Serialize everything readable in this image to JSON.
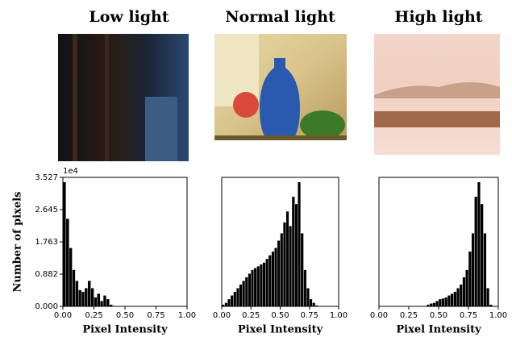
{
  "chart_data": [
    {
      "type": "histogram",
      "title": "Low light",
      "x_label": "Pixel Intensity",
      "y_label": "Number of pixels",
      "y_offset_text": "1e4",
      "color": "#000000",
      "bins": [
        0,
        0.025,
        0.05,
        0.075,
        0.1,
        0.125,
        0.15,
        0.175,
        0.2,
        0.225,
        0.25,
        0.275,
        0.3,
        0.325,
        0.35,
        0.375,
        0.4,
        0.425,
        0.45,
        0.475,
        0.5,
        0.525,
        0.55,
        0.575,
        0.6,
        0.625,
        0.65,
        0.675,
        0.7,
        0.725,
        0.75,
        0.775,
        0.8,
        0.825,
        0.85,
        0.875,
        0.9,
        0.925,
        0.95,
        0.975,
        1
      ],
      "values": [
        3.4,
        2.4,
        1.6,
        1.0,
        0.7,
        0.45,
        0.4,
        0.5,
        0.7,
        0.5,
        0.25,
        0.35,
        0.15,
        0.3,
        0.2,
        0.05,
        0,
        0,
        0,
        0,
        0,
        0,
        0,
        0,
        0,
        0,
        0,
        0,
        0,
        0,
        0,
        0,
        0,
        0,
        0,
        0,
        0,
        0,
        0,
        0
      ],
      "xlim": [
        0,
        1
      ],
      "ylim": [
        0,
        3.527
      ],
      "xticks": [
        {
          "value": 0,
          "label": "0.00"
        },
        {
          "value": 0.25,
          "label": "0.25"
        },
        {
          "value": 0.5,
          "label": "0.50"
        },
        {
          "value": 0.75,
          "label": "0.75"
        },
        {
          "value": 1,
          "label": "1.00"
        }
      ],
      "yticks": [
        {
          "value": 0,
          "label": "0.000"
        },
        0.882,
        1.763,
        2.645,
        3.527
      ]
    },
    {
      "type": "histogram",
      "title": "Normal light",
      "x_label": "Pixel Intensity",
      "color": "#000000",
      "bins": [
        0,
        0.025,
        0.05,
        0.075,
        0.1,
        0.125,
        0.15,
        0.175,
        0.2,
        0.225,
        0.25,
        0.275,
        0.3,
        0.325,
        0.35,
        0.375,
        0.4,
        0.425,
        0.45,
        0.475,
        0.5,
        0.525,
        0.55,
        0.575,
        0.6,
        0.625,
        0.65,
        0.675,
        0.7,
        0.725,
        0.75,
        0.775,
        0.8,
        0.825,
        0.85,
        0.875,
        0.9,
        0.925,
        0.95,
        0.975,
        1
      ],
      "values": [
        0.05,
        0.1,
        0.2,
        0.3,
        0.4,
        0.5,
        0.6,
        0.7,
        0.8,
        0.9,
        1.0,
        1.05,
        1.1,
        1.15,
        1.2,
        1.3,
        1.4,
        1.5,
        1.6,
        1.8,
        2.0,
        2.3,
        2.6,
        2.2,
        3.0,
        2.8,
        3.4,
        2.0,
        1.0,
        0.5,
        0.2,
        0.1,
        0.03,
        0,
        0,
        0,
        0,
        0,
        0,
        0
      ],
      "xlim": [
        0,
        1
      ],
      "ylim": [
        0,
        3.527
      ],
      "xticks": [
        {
          "value": 0,
          "label": "0.00"
        },
        {
          "value": 0.25,
          "label": "0.25"
        },
        {
          "value": 0.5,
          "label": "0.50"
        },
        {
          "value": 0.75,
          "label": "0.75"
        },
        {
          "value": 1,
          "label": "1.00"
        }
      ]
    },
    {
      "type": "histogram",
      "title": "High light",
      "x_label": "Pixel Intensity",
      "color": "#000000",
      "bins": [
        0,
        0.025,
        0.05,
        0.075,
        0.1,
        0.125,
        0.15,
        0.175,
        0.2,
        0.225,
        0.25,
        0.275,
        0.3,
        0.325,
        0.35,
        0.375,
        0.4,
        0.425,
        0.45,
        0.475,
        0.5,
        0.525,
        0.55,
        0.575,
        0.6,
        0.625,
        0.65,
        0.675,
        0.7,
        0.725,
        0.75,
        0.775,
        0.8,
        0.825,
        0.85,
        0.875,
        0.9,
        0.925,
        0.95,
        0.975,
        1
      ],
      "values": [
        0,
        0,
        0,
        0,
        0,
        0,
        0,
        0,
        0,
        0,
        0,
        0,
        0,
        0,
        0,
        0,
        0.05,
        0.08,
        0.1,
        0.15,
        0.2,
        0.22,
        0.25,
        0.3,
        0.35,
        0.4,
        0.5,
        0.6,
        0.8,
        1.0,
        1.5,
        2.0,
        3.0,
        3.4,
        2.8,
        2.0,
        0.5,
        0.05,
        0,
        0
      ],
      "xlim": [
        0,
        1
      ],
      "ylim": [
        0,
        3.527
      ],
      "xticks": [
        {
          "value": 0,
          "label": "0.00"
        },
        {
          "value": 0.25,
          "label": "0.25"
        },
        {
          "value": 0.5,
          "label": "0.50"
        },
        {
          "value": 0.75,
          "label": "0.75"
        },
        {
          "value": 1,
          "label": "1.00"
        }
      ]
    }
  ]
}
